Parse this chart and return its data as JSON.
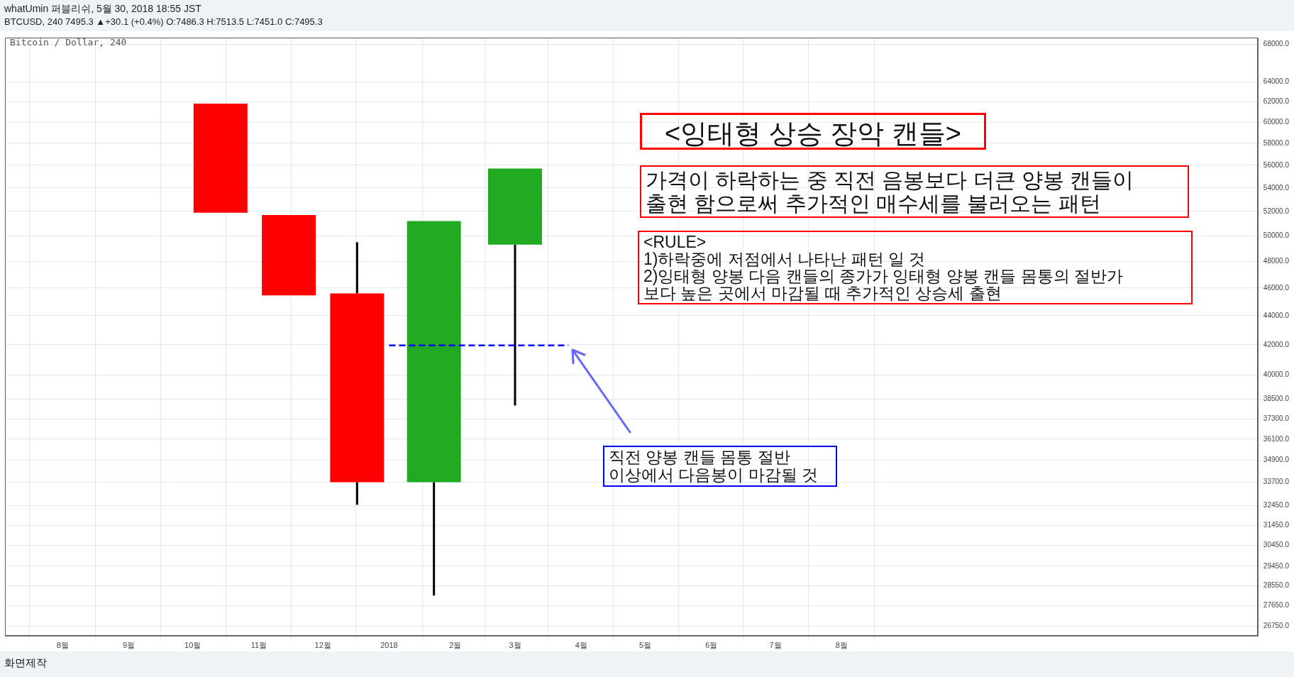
{
  "chart_data": {
    "type": "candlestick",
    "title": "whatUmin 퍼블리쉬, 5월 30, 2018 18:55 JST",
    "subtitle": "BTCUSD, 240 7495.3 ▲+30.1 (+0.4%) O:7486.3 H:7513.5 L:7451.0 C:7495.3",
    "x": [
      "2017-10-14",
      "2017-11-15",
      "2017-12-17",
      "2018-01-22",
      "2018-03-01"
    ],
    "ohlc": [
      [
        61800,
        61800,
        51900,
        51900
      ],
      [
        51700,
        51700,
        45450,
        45450
      ],
      [
        45600,
        49500,
        32500,
        33700
      ],
      [
        33700,
        51200,
        28100,
        51200
      ],
      [
        49300,
        55700,
        38100,
        55700
      ]
    ],
    "colors": [
      "#ff0000",
      "#ff0000",
      "#ff0000",
      "#22aa22",
      "#22aa22"
    ],
    "series": [
      {
        "type": "line",
        "x": [
          "2018-01-01",
          "2018-03-26"
        ],
        "values": [
          41950,
          41950
        ],
        "color": "#0000ff",
        "line_style": "dashed"
      }
    ],
    "log": "y",
    "grid": true,
    "legend": false,
    "marker": "none",
    "xlim": [
      "2017-07-05",
      "2019-02-12"
    ],
    "xticks": [
      {
        "value": "2017-08",
        "label": "8월"
      },
      {
        "value": "2017-09",
        "label": "9월"
      },
      {
        "value": "2017-10",
        "label": "10월"
      },
      {
        "value": "2017-11",
        "label": "11월"
      },
      {
        "value": "2017-12",
        "label": "12월"
      },
      {
        "value": "2018-01",
        "label": "2018"
      },
      {
        "value": "2018-02",
        "label": "2월"
      },
      {
        "value": "2018-03",
        "label": "3월"
      },
      {
        "value": "2018-04",
        "label": "4월"
      },
      {
        "value": "2018-05",
        "label": "5월"
      },
      {
        "value": "2018-06",
        "label": "6월"
      },
      {
        "value": "2018-07",
        "label": "7월"
      },
      {
        "value": "2018-08",
        "label": "8월"
      }
    ],
    "ylim": [
      26350,
      68700
    ],
    "yticks": [
      {
        "value": 68000,
        "label": "68000.0"
      },
      {
        "value": 64000,
        "label": "64000.0"
      },
      {
        "value": 62000,
        "label": "62000.0"
      },
      {
        "value": 60000,
        "label": "60000.0"
      },
      {
        "value": 58000,
        "label": "58000.0"
      },
      {
        "value": 56000,
        "label": "56000.0"
      },
      {
        "value": 54000,
        "label": "54000.0"
      },
      {
        "value": 52000,
        "label": "52000.0"
      },
      {
        "value": 50000,
        "label": "50000.0"
      },
      {
        "value": 48000,
        "label": "48000.0"
      },
      {
        "value": 46000,
        "label": "46000.0"
      },
      {
        "value": 44000,
        "label": "44000.0"
      },
      {
        "value": 42000,
        "label": "42000.0"
      },
      {
        "value": 40000,
        "label": "40000.0"
      },
      {
        "value": 38500,
        "label": "38500.0"
      },
      {
        "value": 37300,
        "label": "37300.0"
      },
      {
        "value": 36100,
        "label": "36100.0"
      },
      {
        "value": 34900,
        "label": "34900.0"
      },
      {
        "value": 33700,
        "label": "33700.0"
      },
      {
        "value": 32450,
        "label": "32450.0"
      },
      {
        "value": 31450,
        "label": "31450.0"
      },
      {
        "value": 30450,
        "label": "30450.0"
      },
      {
        "value": 29450,
        "label": "29450.0"
      },
      {
        "value": 28550,
        "label": "28550.0"
      },
      {
        "value": 27650,
        "label": "27650.0"
      },
      {
        "value": 26750,
        "label": "26750.0"
      }
    ],
    "annotations": [
      "Bitcoin / Dollar, 240",
      "<잉태형 상승 장악 캔들>",
      "가격이 하락하는 중 직전 음봉보다 더큰 양봉 캔들이\n출현 함으로써 추가적인 매수세를 불러오는 패턴",
      "<RULE>\n1)하락중에 저점에서 나타난 패턴 일 것\n2)잉태형 양봉 다음 캔들의 종가가 잉태형 양봉 캔들 몸통의 절반가\n보다 높은 곳에서 마감될 때 추가적인 상승세 출현",
      "직전 양봉 캔들 몸통 절반\n이상에서 다음봉이 마감될 것",
      "화면제작"
    ]
  }
}
